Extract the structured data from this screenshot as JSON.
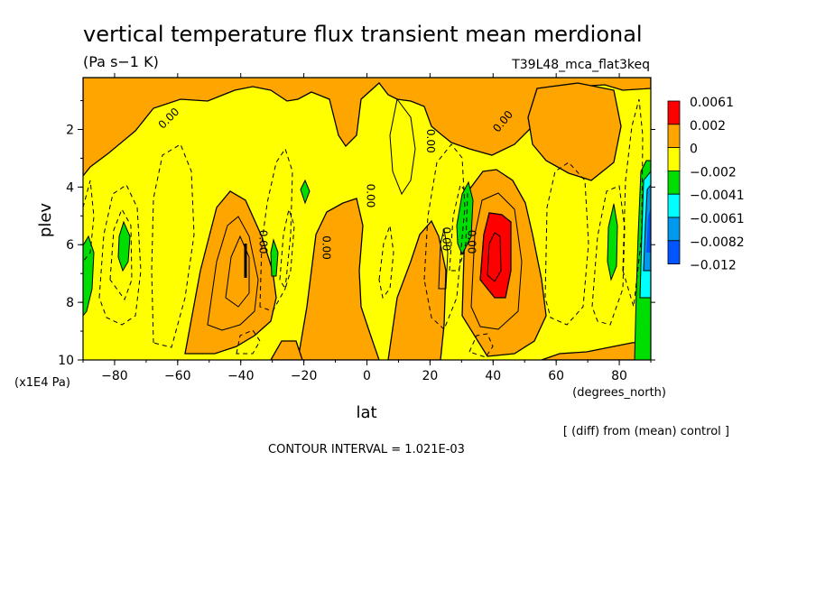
{
  "chart_data": {
    "type": "heatmap",
    "title": "vertical temperature flux transient mean merdional",
    "units": "(Pa s−1 K)",
    "experiment": "T39L48_mca_flat3keq",
    "xlabel": "lat",
    "x_units": "(degrees_north)",
    "ylabel": "plev",
    "y_units": "(x1E4 Pa)",
    "xlim": [
      -90,
      90
    ],
    "ylim": [
      10,
      0.2
    ],
    "x_ticks": [
      -80,
      -60,
      -40,
      -20,
      0,
      20,
      40,
      60,
      80
    ],
    "x_tick_labels": [
      "−80",
      "−60",
      "−40",
      "−20",
      "0",
      "20",
      "40",
      "60",
      "80"
    ],
    "y_ticks": [
      2,
      4,
      6,
      8,
      10
    ],
    "legend": {
      "placement": "right",
      "levels": [
        "0.0061",
        "0.002",
        "0",
        "−0.002",
        "−0.0041",
        "−0.0061",
        "−0.0082",
        "−0.012"
      ],
      "colors": [
        "#ff0000",
        "#ffa500",
        "#ffff00",
        "#00dd00",
        "#00ffff",
        "#0099ee",
        "#0055ff"
      ]
    },
    "contour_labels": [
      {
        "text": "0.00",
        "lat": -62,
        "plev": 1.7,
        "angle": -45
      },
      {
        "text": "0.00",
        "lat": 19,
        "plev": 2.4,
        "angle": 90
      },
      {
        "text": "0.00",
        "lat": 44,
        "plev": 1.8,
        "angle": -50
      },
      {
        "text": "0.00",
        "lat": 0,
        "plev": 4.3,
        "angle": 90
      },
      {
        "text": "0.00",
        "lat": -34,
        "plev": 5.9,
        "angle": 90
      },
      {
        "text": "0.00",
        "lat": -14,
        "plev": 6.1,
        "angle": 90
      },
      {
        "text": "0.00",
        "lat": 24,
        "plev": 5.8,
        "angle": 90
      },
      {
        "text": "0.00",
        "lat": 32,
        "plev": 5.9,
        "angle": 90
      }
    ],
    "grid": false,
    "footer_right": "[ (diff) from (mean) control ]",
    "contour_interval_label": "CONTOUR INTERVAL = 1.021E-03"
  }
}
